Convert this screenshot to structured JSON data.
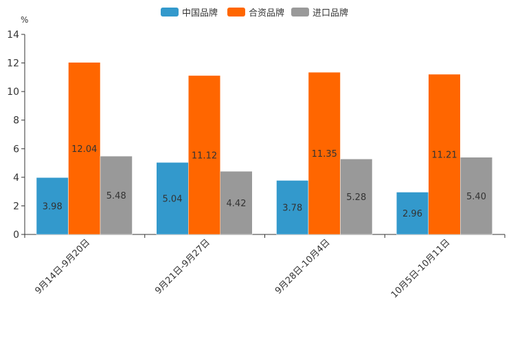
{
  "chart_data": {
    "type": "bar",
    "unit": "%",
    "categories": [
      "9月14日-9月20日",
      "9月21日-9月27日",
      "9月28日-10月4日",
      "10月5日-10月11日"
    ],
    "series": [
      {
        "name": "中国品牌",
        "color": "#3399CC",
        "values": [
          3.98,
          5.04,
          3.78,
          2.96
        ],
        "labels": [
          "3.98",
          "5.04",
          "3.78",
          "2.96"
        ]
      },
      {
        "name": "合资品牌",
        "color": "#FF6600",
        "values": [
          12.04,
          11.12,
          11.35,
          11.21
        ],
        "labels": [
          "12.04",
          "11.12",
          "11.35",
          "11.21"
        ]
      },
      {
        "name": "进口品牌",
        "color": "#999999",
        "values": [
          5.48,
          4.42,
          5.28,
          5.4
        ],
        "labels": [
          "5.48",
          "4.42",
          "5.28",
          "5.40"
        ]
      }
    ],
    "ylim": [
      0,
      14
    ],
    "yticks": [
      "0",
      "2",
      "4",
      "6",
      "8",
      "10",
      "12",
      "14"
    ],
    "legend_position": "top-center"
  }
}
